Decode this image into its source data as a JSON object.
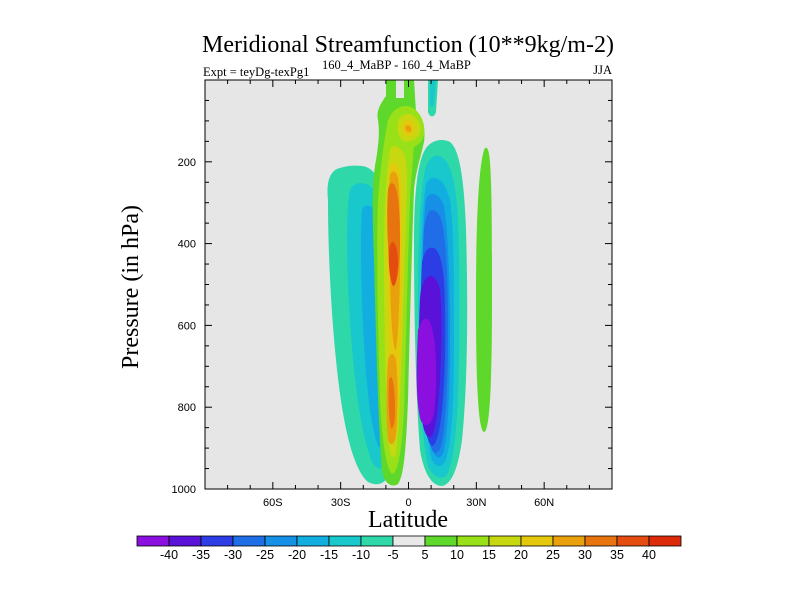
{
  "chart_data": {
    "type": "contour",
    "title": "Meridional Streamfunction (10**9kg/m-2)",
    "subtitle_left": "Expt = teyDg-texPg1",
    "subtitle_super": "160_4_MaBP - 160_4_MaBP",
    "subtitle_right": "JJA",
    "xlabel": "Latitude",
    "ylabel": "Pressure (in hPa)",
    "xlim": [
      -90,
      90
    ],
    "ylim": [
      1000,
      0
    ],
    "x_ticks": [
      {
        "value": -60,
        "label": "60S"
      },
      {
        "value": -30,
        "label": "30S"
      },
      {
        "value": 0,
        "label": "0"
      },
      {
        "value": 30,
        "label": "30N"
      },
      {
        "value": 60,
        "label": "60N"
      }
    ],
    "y_ticks": [
      {
        "value": 200,
        "label": "200"
      },
      {
        "value": 400,
        "label": "400"
      },
      {
        "value": 600,
        "label": "600"
      },
      {
        "value": 800,
        "label": "800"
      },
      {
        "value": 1000,
        "label": "1000"
      }
    ],
    "background_color": "#e6e6e6",
    "colorbar": {
      "levels": [
        -40,
        -35,
        -30,
        -25,
        -20,
        -15,
        -10,
        -5,
        5,
        10,
        15,
        20,
        25,
        30,
        35,
        40
      ],
      "colors": [
        "#8b10e0",
        "#5a12d8",
        "#2c3de6",
        "#1f6ee8",
        "#1590e6",
        "#12aee0",
        "#18c8cc",
        "#2ed8a8",
        "#e8e8e8",
        "#5ed82a",
        "#98e018",
        "#c8d810",
        "#e4c80c",
        "#e8a00c",
        "#e87410",
        "#e44c10",
        "#dc2a0a"
      ]
    },
    "features": [
      {
        "name": "sh-weak-negative-cell",
        "value_range": [
          -15,
          -5
        ],
        "lat": [
          -38,
          -14
        ],
        "pressure": [
          200,
          980
        ]
      },
      {
        "name": "equatorial-positive-cell",
        "value_range": [
          5,
          35
        ],
        "lat": [
          -15,
          -3
        ],
        "pressure": [
          30,
          980
        ],
        "max_near_pressure": 280
      },
      {
        "name": "upper-positive-cell",
        "value_range": [
          5,
          25
        ],
        "lat": [
          -12,
          10
        ],
        "pressure": [
          60,
          200
        ],
        "max_near_pressure": 120
      },
      {
        "name": "nh-strong-negative-cell",
        "value_range": [
          -40,
          -5
        ],
        "lat": [
          5,
          30
        ],
        "pressure": [
          190,
          980
        ],
        "min_near_pressure": 800
      },
      {
        "name": "nh-weak-positive-band",
        "value_range": [
          5,
          10
        ],
        "lat": [
          30,
          37
        ],
        "pressure": [
          160,
          860
        ]
      }
    ]
  }
}
